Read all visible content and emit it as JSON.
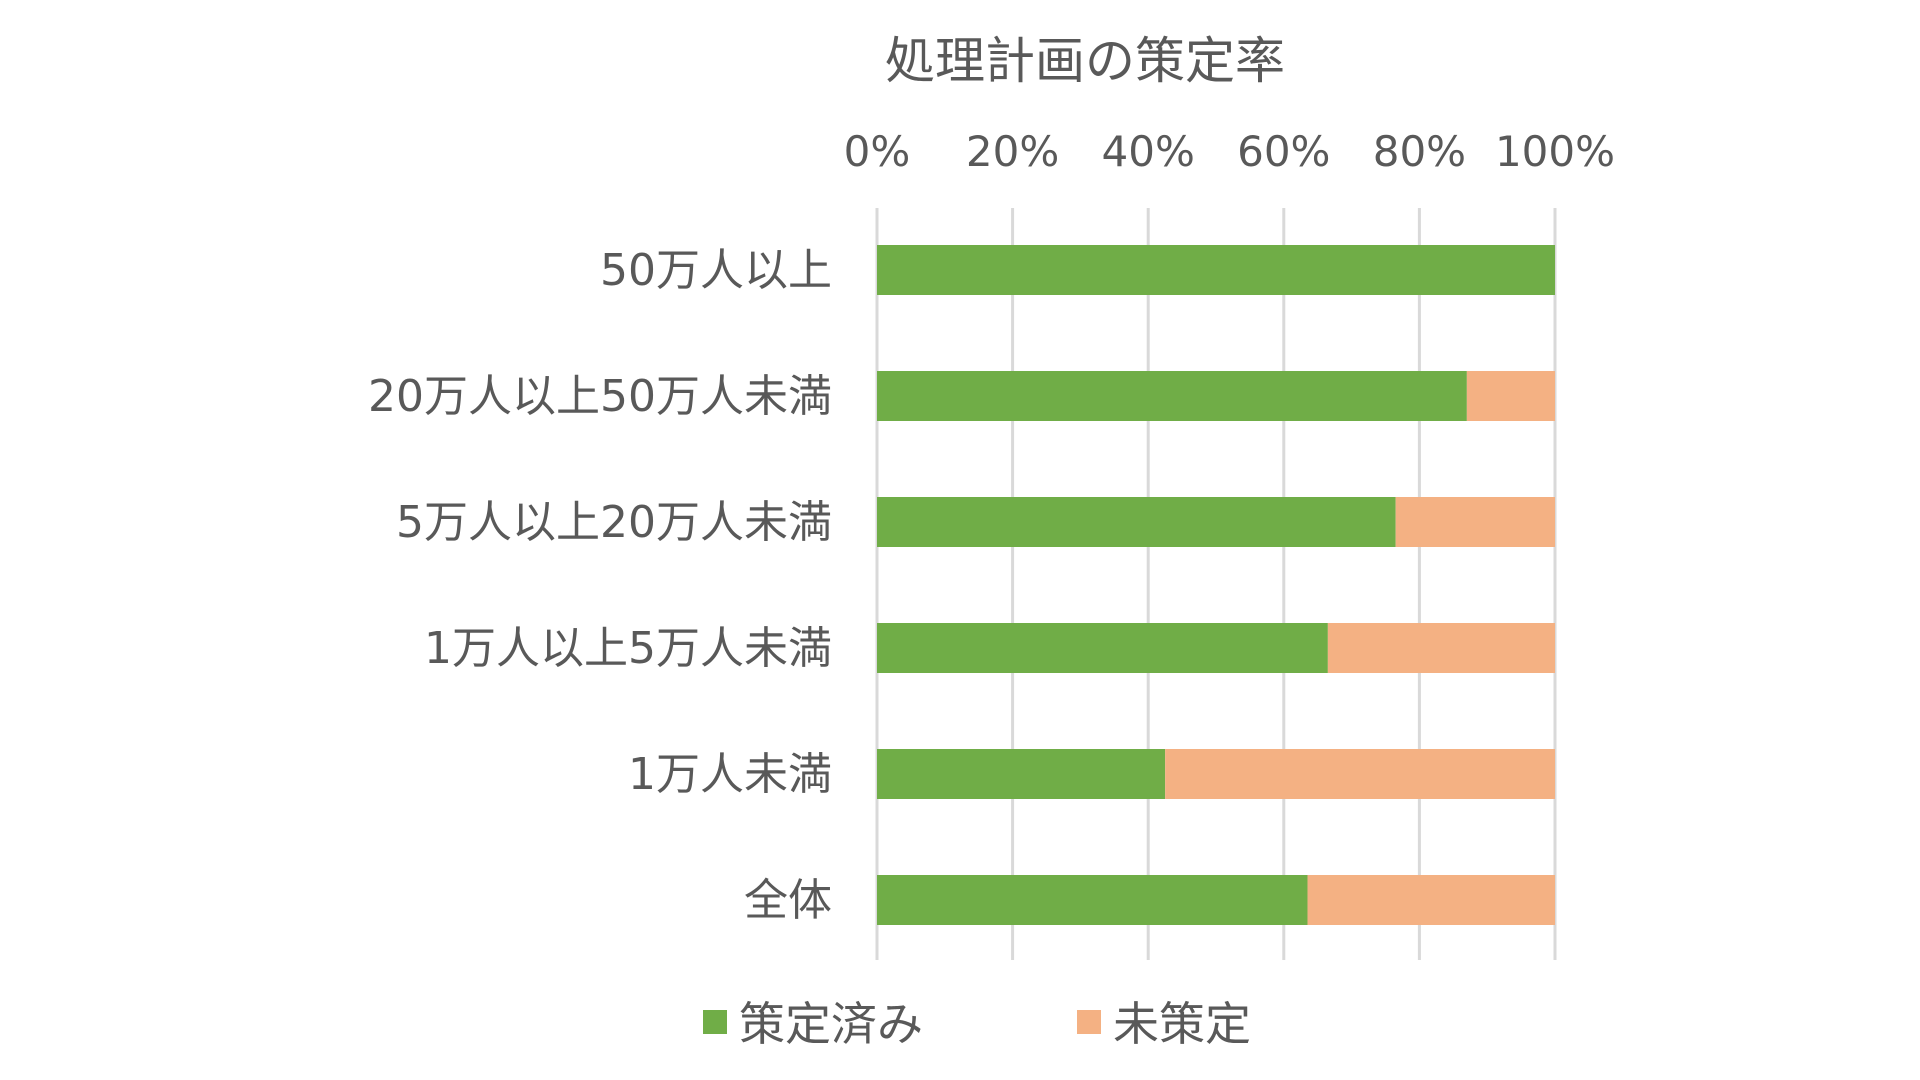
{
  "chart_data": {
    "type": "bar",
    "orientation": "horizontal",
    "stacked": true,
    "percent_stacked": true,
    "title": "処理計画の策定率",
    "categories": [
      "50万人以上",
      "20万人以上50万人未満",
      "5万人以上20万人未満",
      "1万人以上5万人未満",
      "1万人未満",
      "全体"
    ],
    "series": [
      {
        "name": "策定済み",
        "color": "#70ad47",
        "values": [
          100,
          87,
          76.5,
          66.5,
          42.5,
          63.5
        ]
      },
      {
        "name": "未策定",
        "color": "#f4b183",
        "values": [
          0,
          13,
          23.5,
          33.5,
          57.5,
          36.5
        ]
      }
    ],
    "x_ticks": [
      "0%",
      "20%",
      "40%",
      "60%",
      "80%",
      "100%"
    ],
    "xlim": [
      0,
      100
    ],
    "x_axis_position": "top",
    "grid": true,
    "legend": "bottom"
  }
}
